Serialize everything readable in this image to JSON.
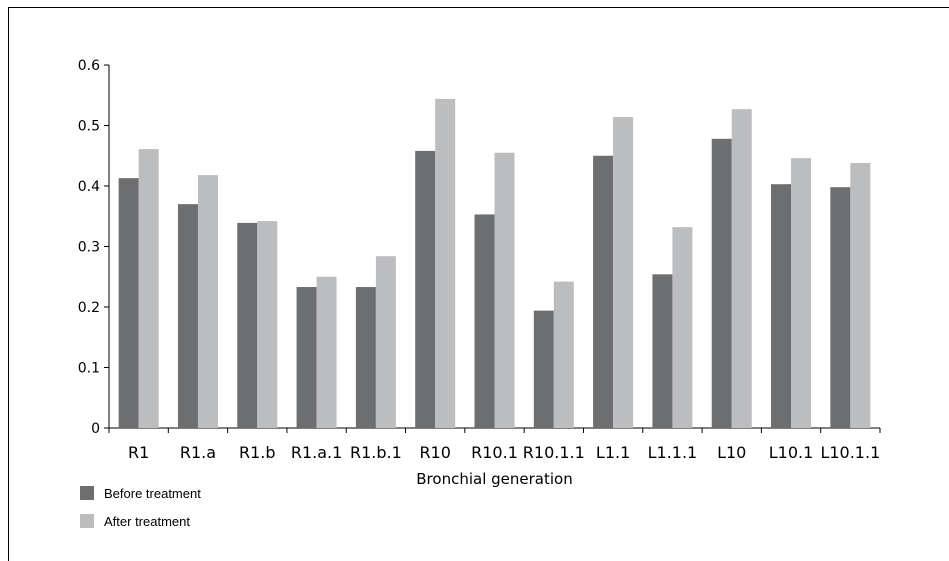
{
  "chart_data": {
    "type": "bar",
    "xlabel": "Bronchial generation",
    "ylabel": "",
    "ylim": [
      0,
      0.6
    ],
    "yticks": [
      "0",
      "0.1",
      "0.2",
      "0.3",
      "0.4",
      "0.5",
      "0.6"
    ],
    "categories": [
      "R1",
      "R1.a",
      "R1.b",
      "R1.a.1",
      "R1.b.1",
      "R10",
      "R10.1",
      "R10.1.1",
      "L1.1",
      "L1.1.1",
      "L10",
      "L10.1",
      "L10.1.1"
    ],
    "series": [
      {
        "name": "Before treatment",
        "color": "#6d6e70",
        "values": [
          0.413,
          0.37,
          0.339,
          0.233,
          0.233,
          0.458,
          0.353,
          0.194,
          0.45,
          0.254,
          0.478,
          0.403,
          0.398
        ]
      },
      {
        "name": "After treatment",
        "color": "#bcbdbf",
        "values": [
          0.461,
          0.418,
          0.342,
          0.25,
          0.284,
          0.544,
          0.455,
          0.242,
          0.514,
          0.332,
          0.527,
          0.446,
          0.438
        ]
      }
    ],
    "legend_position": "bottom-left",
    "grid": false
  }
}
